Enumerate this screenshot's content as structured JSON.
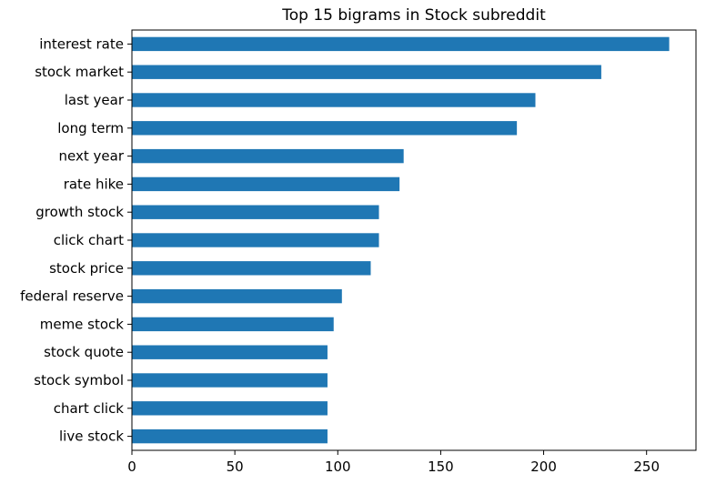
{
  "colors": {
    "bar": "#1f77b4",
    "axis": "#000000",
    "background": "#ffffff"
  },
  "chart_data": {
    "type": "bar",
    "orientation": "horizontal",
    "title": "Top 15 bigrams in Stock subreddit",
    "xlabel": "",
    "ylabel": "",
    "xlim": [
      0,
      274
    ],
    "xticks": [
      0,
      50,
      100,
      150,
      200,
      250
    ],
    "grid": false,
    "legend": "none",
    "categories": [
      "interest rate",
      "stock market",
      "last year",
      "long term",
      "next year",
      "rate hike",
      "growth stock",
      "click chart",
      "stock price",
      "federal reserve",
      "meme stock",
      "stock quote",
      "stock symbol",
      "chart click",
      "live stock"
    ],
    "values": [
      261,
      228,
      196,
      187,
      132,
      130,
      120,
      120,
      116,
      102,
      98,
      95,
      95,
      95,
      95
    ]
  }
}
